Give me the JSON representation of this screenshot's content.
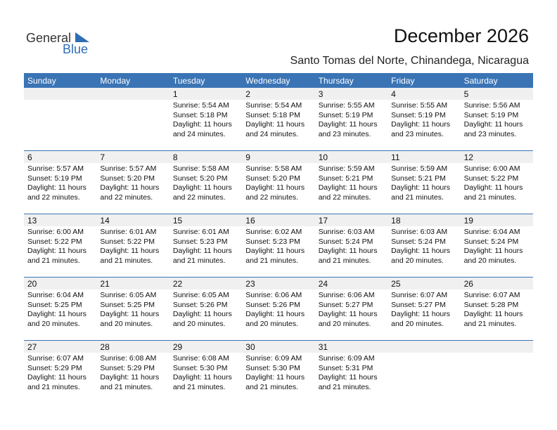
{
  "logo": {
    "word1": "General",
    "word2": "Blue"
  },
  "header": {
    "title": "December 2026",
    "subtitle": "Santo Tomas del Norte, Chinandega, Nicaragua"
  },
  "calendar": {
    "weekdays": [
      "Sunday",
      "Monday",
      "Tuesday",
      "Wednesday",
      "Thursday",
      "Friday",
      "Saturday"
    ],
    "weeks": [
      {
        "days": [
          null,
          null,
          {
            "day": 1,
            "lines": [
              "Sunrise: 5:54 AM",
              "Sunset: 5:18 PM",
              "Daylight: 11 hours",
              "and 24 minutes."
            ]
          },
          {
            "day": 2,
            "lines": [
              "Sunrise: 5:54 AM",
              "Sunset: 5:18 PM",
              "Daylight: 11 hours",
              "and 24 minutes."
            ]
          },
          {
            "day": 3,
            "lines": [
              "Sunrise: 5:55 AM",
              "Sunset: 5:19 PM",
              "Daylight: 11 hours",
              "and 23 minutes."
            ]
          },
          {
            "day": 4,
            "lines": [
              "Sunrise: 5:55 AM",
              "Sunset: 5:19 PM",
              "Daylight: 11 hours",
              "and 23 minutes."
            ]
          },
          {
            "day": 5,
            "lines": [
              "Sunrise: 5:56 AM",
              "Sunset: 5:19 PM",
              "Daylight: 11 hours",
              "and 23 minutes."
            ]
          }
        ]
      },
      {
        "days": [
          {
            "day": 6,
            "lines": [
              "Sunrise: 5:57 AM",
              "Sunset: 5:19 PM",
              "Daylight: 11 hours",
              "and 22 minutes."
            ]
          },
          {
            "day": 7,
            "lines": [
              "Sunrise: 5:57 AM",
              "Sunset: 5:20 PM",
              "Daylight: 11 hours",
              "and 22 minutes."
            ]
          },
          {
            "day": 8,
            "lines": [
              "Sunrise: 5:58 AM",
              "Sunset: 5:20 PM",
              "Daylight: 11 hours",
              "and 22 minutes."
            ]
          },
          {
            "day": 9,
            "lines": [
              "Sunrise: 5:58 AM",
              "Sunset: 5:20 PM",
              "Daylight: 11 hours",
              "and 22 minutes."
            ]
          },
          {
            "day": 10,
            "lines": [
              "Sunrise: 5:59 AM",
              "Sunset: 5:21 PM",
              "Daylight: 11 hours",
              "and 22 minutes."
            ]
          },
          {
            "day": 11,
            "lines": [
              "Sunrise: 5:59 AM",
              "Sunset: 5:21 PM",
              "Daylight: 11 hours",
              "and 21 minutes."
            ]
          },
          {
            "day": 12,
            "lines": [
              "Sunrise: 6:00 AM",
              "Sunset: 5:22 PM",
              "Daylight: 11 hours",
              "and 21 minutes."
            ]
          }
        ]
      },
      {
        "days": [
          {
            "day": 13,
            "lines": [
              "Sunrise: 6:00 AM",
              "Sunset: 5:22 PM",
              "Daylight: 11 hours",
              "and 21 minutes."
            ]
          },
          {
            "day": 14,
            "lines": [
              "Sunrise: 6:01 AM",
              "Sunset: 5:22 PM",
              "Daylight: 11 hours",
              "and 21 minutes."
            ]
          },
          {
            "day": 15,
            "lines": [
              "Sunrise: 6:01 AM",
              "Sunset: 5:23 PM",
              "Daylight: 11 hours",
              "and 21 minutes."
            ]
          },
          {
            "day": 16,
            "lines": [
              "Sunrise: 6:02 AM",
              "Sunset: 5:23 PM",
              "Daylight: 11 hours",
              "and 21 minutes."
            ]
          },
          {
            "day": 17,
            "lines": [
              "Sunrise: 6:03 AM",
              "Sunset: 5:24 PM",
              "Daylight: 11 hours",
              "and 21 minutes."
            ]
          },
          {
            "day": 18,
            "lines": [
              "Sunrise: 6:03 AM",
              "Sunset: 5:24 PM",
              "Daylight: 11 hours",
              "and 20 minutes."
            ]
          },
          {
            "day": 19,
            "lines": [
              "Sunrise: 6:04 AM",
              "Sunset: 5:24 PM",
              "Daylight: 11 hours",
              "and 20 minutes."
            ]
          }
        ]
      },
      {
        "days": [
          {
            "day": 20,
            "lines": [
              "Sunrise: 6:04 AM",
              "Sunset: 5:25 PM",
              "Daylight: 11 hours",
              "and 20 minutes."
            ]
          },
          {
            "day": 21,
            "lines": [
              "Sunrise: 6:05 AM",
              "Sunset: 5:25 PM",
              "Daylight: 11 hours",
              "and 20 minutes."
            ]
          },
          {
            "day": 22,
            "lines": [
              "Sunrise: 6:05 AM",
              "Sunset: 5:26 PM",
              "Daylight: 11 hours",
              "and 20 minutes."
            ]
          },
          {
            "day": 23,
            "lines": [
              "Sunrise: 6:06 AM",
              "Sunset: 5:26 PM",
              "Daylight: 11 hours",
              "and 20 minutes."
            ]
          },
          {
            "day": 24,
            "lines": [
              "Sunrise: 6:06 AM",
              "Sunset: 5:27 PM",
              "Daylight: 11 hours",
              "and 20 minutes."
            ]
          },
          {
            "day": 25,
            "lines": [
              "Sunrise: 6:07 AM",
              "Sunset: 5:27 PM",
              "Daylight: 11 hours",
              "and 20 minutes."
            ]
          },
          {
            "day": 26,
            "lines": [
              "Sunrise: 6:07 AM",
              "Sunset: 5:28 PM",
              "Daylight: 11 hours",
              "and 21 minutes."
            ]
          }
        ]
      },
      {
        "days": [
          {
            "day": 27,
            "lines": [
              "Sunrise: 6:07 AM",
              "Sunset: 5:29 PM",
              "Daylight: 11 hours",
              "and 21 minutes."
            ]
          },
          {
            "day": 28,
            "lines": [
              "Sunrise: 6:08 AM",
              "Sunset: 5:29 PM",
              "Daylight: 11 hours",
              "and 21 minutes."
            ]
          },
          {
            "day": 29,
            "lines": [
              "Sunrise: 6:08 AM",
              "Sunset: 5:30 PM",
              "Daylight: 11 hours",
              "and 21 minutes."
            ]
          },
          {
            "day": 30,
            "lines": [
              "Sunrise: 6:09 AM",
              "Sunset: 5:30 PM",
              "Daylight: 11 hours",
              "and 21 minutes."
            ]
          },
          {
            "day": 31,
            "lines": [
              "Sunrise: 6:09 AM",
              "Sunset: 5:31 PM",
              "Daylight: 11 hours",
              "and 21 minutes."
            ]
          },
          null,
          null
        ]
      }
    ]
  }
}
